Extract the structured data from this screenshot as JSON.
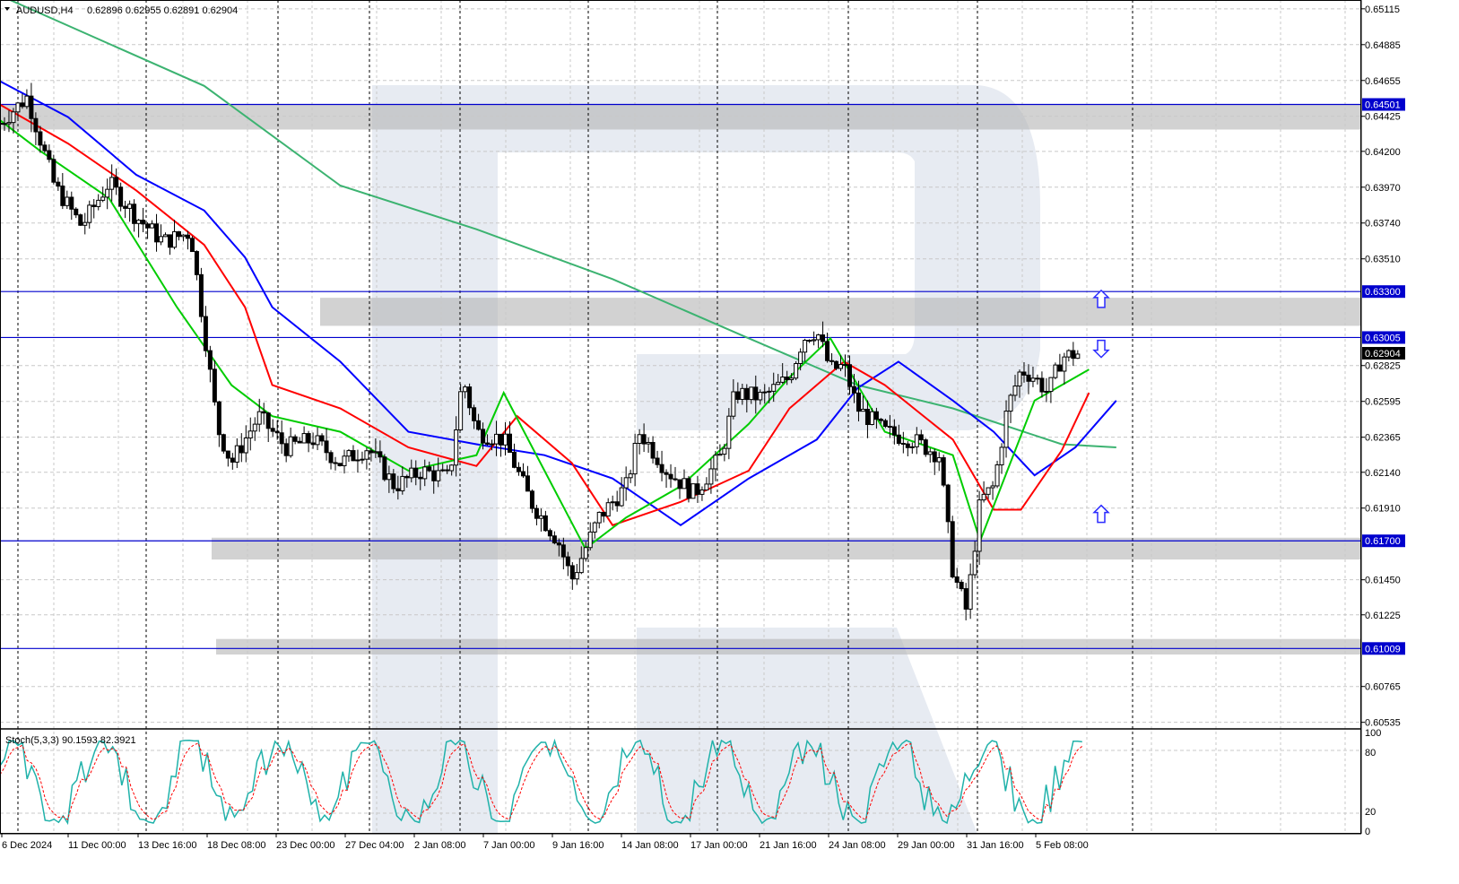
{
  "header": {
    "symbol": "AUDUSD,H4",
    "ohlc": "0.62896 0.62955 0.62891 0.62904",
    "stoch_label": "Stoch(5,3,3) 90.1593 82.3921"
  },
  "chart_data": {
    "type": "candlestick",
    "price_axis": {
      "ticks": [
        0.65115,
        0.64885,
        0.64655,
        0.64425,
        0.642,
        0.6397,
        0.6374,
        0.6351,
        0.62825,
        0.62595,
        0.62365,
        0.6214,
        0.6191,
        0.6145,
        0.61225,
        0.60765,
        0.60535
      ],
      "tick_labels": [
        "0.65115",
        "0.64885",
        "0.64655",
        "0.64425",
        "0.64200",
        "0.63970",
        "0.63740",
        "0.63510",
        "0.62825",
        "0.62595",
        "0.62365",
        "0.62140",
        "0.61910",
        "0.61450",
        "0.61225",
        "0.60765",
        "0.60535"
      ],
      "range": [
        0.6051,
        0.6516
      ]
    },
    "time_axis": {
      "labels": [
        "6 Dec 2024",
        "11 Dec 00:00",
        "13 Dec 16:00",
        "18 Dec 08:00",
        "23 Dec 00:00",
        "27 Dec 04:00",
        "2 Jan 08:00",
        "7 Jan 00:00",
        "9 Jan 16:00",
        "14 Jan 08:00",
        "17 Jan 00:00",
        "21 Jan 16:00",
        "24 Jan 08:00",
        "29 Jan 00:00",
        "31 Jan 16:00",
        "5 Feb 08:00"
      ]
    },
    "levels": [
      {
        "price": 0.64501,
        "label": "0.64501"
      },
      {
        "price": 0.633,
        "label": "0.63300"
      },
      {
        "price": 0.63005,
        "label": "0.63005"
      },
      {
        "price": 0.617,
        "label": "0.61700"
      },
      {
        "price": 0.61009,
        "label": "0.61009"
      }
    ],
    "current_price": {
      "price": 0.62904,
      "label": "0.62904"
    },
    "zones": [
      {
        "from": 0.6434,
        "to": 0.645
      },
      {
        "from": 0.6308,
        "to": 0.6326
      },
      {
        "from": 0.6158,
        "to": 0.6172
      },
      {
        "from": 0.6097,
        "to": 0.6107
      }
    ],
    "moving_averages": [
      {
        "color": "#3cb371",
        "points": [
          [
            0.0,
            0.652
          ],
          [
            0.15,
            0.6462
          ],
          [
            0.25,
            0.6398
          ],
          [
            0.35,
            0.637
          ],
          [
            0.45,
            0.6338
          ],
          [
            0.55,
            0.63
          ],
          [
            0.63,
            0.627
          ],
          [
            0.7,
            0.6255
          ],
          [
            0.78,
            0.6232
          ],
          [
            0.82,
            0.623
          ]
        ]
      },
      {
        "color": "#0000ff",
        "points": [
          [
            0.0,
            0.6465
          ],
          [
            0.05,
            0.6442
          ],
          [
            0.1,
            0.6405
          ],
          [
            0.15,
            0.6382
          ],
          [
            0.18,
            0.6352
          ],
          [
            0.2,
            0.632
          ],
          [
            0.25,
            0.6285
          ],
          [
            0.3,
            0.624
          ],
          [
            0.35,
            0.6232
          ],
          [
            0.4,
            0.6225
          ],
          [
            0.45,
            0.621
          ],
          [
            0.5,
            0.618
          ],
          [
            0.55,
            0.621
          ],
          [
            0.6,
            0.6235
          ],
          [
            0.63,
            0.6268
          ],
          [
            0.66,
            0.6285
          ],
          [
            0.7,
            0.626
          ],
          [
            0.73,
            0.624
          ],
          [
            0.76,
            0.6212
          ],
          [
            0.79,
            0.623
          ],
          [
            0.82,
            0.626
          ]
        ]
      },
      {
        "color": "#ff0000",
        "points": [
          [
            0.0,
            0.645
          ],
          [
            0.05,
            0.6425
          ],
          [
            0.1,
            0.6395
          ],
          [
            0.15,
            0.636
          ],
          [
            0.18,
            0.632
          ],
          [
            0.2,
            0.627
          ],
          [
            0.25,
            0.6255
          ],
          [
            0.3,
            0.623
          ],
          [
            0.35,
            0.6218
          ],
          [
            0.38,
            0.625
          ],
          [
            0.42,
            0.622
          ],
          [
            0.45,
            0.618
          ],
          [
            0.5,
            0.6195
          ],
          [
            0.55,
            0.6215
          ],
          [
            0.58,
            0.6255
          ],
          [
            0.62,
            0.6285
          ],
          [
            0.65,
            0.627
          ],
          [
            0.7,
            0.6235
          ],
          [
            0.73,
            0.619
          ],
          [
            0.75,
            0.619
          ],
          [
            0.78,
            0.6228
          ],
          [
            0.8,
            0.6265
          ]
        ]
      },
      {
        "color": "#00cc00",
        "points": [
          [
            0.0,
            0.644
          ],
          [
            0.03,
            0.642
          ],
          [
            0.08,
            0.639
          ],
          [
            0.13,
            0.632
          ],
          [
            0.17,
            0.627
          ],
          [
            0.2,
            0.625
          ],
          [
            0.25,
            0.624
          ],
          [
            0.3,
            0.6215
          ],
          [
            0.35,
            0.6225
          ],
          [
            0.37,
            0.6265
          ],
          [
            0.4,
            0.6215
          ],
          [
            0.43,
            0.6165
          ],
          [
            0.46,
            0.6185
          ],
          [
            0.5,
            0.6205
          ],
          [
            0.55,
            0.6245
          ],
          [
            0.58,
            0.6275
          ],
          [
            0.61,
            0.63
          ],
          [
            0.65,
            0.624
          ],
          [
            0.7,
            0.6225
          ],
          [
            0.72,
            0.617
          ],
          [
            0.74,
            0.6215
          ],
          [
            0.76,
            0.626
          ],
          [
            0.78,
            0.627
          ],
          [
            0.8,
            0.628
          ]
        ]
      }
    ],
    "candles_path": [
      [
        0.0,
        0.6438
      ],
      [
        0.02,
        0.6455
      ],
      [
        0.04,
        0.6398
      ],
      [
        0.06,
        0.6372
      ],
      [
        0.08,
        0.64
      ],
      [
        0.1,
        0.6378
      ],
      [
        0.12,
        0.6362
      ],
      [
        0.14,
        0.6368
      ],
      [
        0.16,
        0.6242
      ],
      [
        0.17,
        0.622
      ],
      [
        0.19,
        0.625
      ],
      [
        0.21,
        0.623
      ],
      [
        0.23,
        0.6235
      ],
      [
        0.25,
        0.622
      ],
      [
        0.27,
        0.623
      ],
      [
        0.29,
        0.6205
      ],
      [
        0.31,
        0.6215
      ],
      [
        0.33,
        0.621
      ],
      [
        0.34,
        0.6275
      ],
      [
        0.35,
        0.624
      ],
      [
        0.37,
        0.6235
      ],
      [
        0.39,
        0.6195
      ],
      [
        0.41,
        0.617
      ],
      [
        0.42,
        0.6145
      ],
      [
        0.44,
        0.6185
      ],
      [
        0.46,
        0.6205
      ],
      [
        0.47,
        0.624
      ],
      [
        0.49,
        0.6215
      ],
      [
        0.51,
        0.62
      ],
      [
        0.53,
        0.6225
      ],
      [
        0.54,
        0.6265
      ],
      [
        0.56,
        0.6262
      ],
      [
        0.58,
        0.6275
      ],
      [
        0.59,
        0.63
      ],
      [
        0.6,
        0.6305
      ],
      [
        0.61,
        0.628
      ],
      [
        0.62,
        0.6282
      ],
      [
        0.63,
        0.6255
      ],
      [
        0.65,
        0.624
      ],
      [
        0.67,
        0.6235
      ],
      [
        0.69,
        0.6225
      ],
      [
        0.7,
        0.615
      ],
      [
        0.71,
        0.6125
      ],
      [
        0.72,
        0.6195
      ],
      [
        0.73,
        0.6205
      ],
      [
        0.74,
        0.6255
      ],
      [
        0.75,
        0.628
      ],
      [
        0.76,
        0.6275
      ],
      [
        0.77,
        0.6265
      ],
      [
        0.78,
        0.6288
      ],
      [
        0.79,
        0.629
      ]
    ],
    "stochastic": {
      "levels": [
        100,
        80,
        20,
        0
      ],
      "labels": [
        "100",
        "80",
        "20",
        "0"
      ],
      "k_color": "#20b2aa",
      "d_color": "#ff0000"
    },
    "arrows": [
      {
        "dir": "up",
        "price": 0.6325
      },
      {
        "dir": "down",
        "price": 0.62935
      },
      {
        "dir": "up",
        "price": 0.6187
      }
    ]
  },
  "colors": {
    "grid": "#c8c8c8",
    "vgrid": "#000000",
    "level_line": "#0000cd",
    "zone": "#b4b4b4",
    "current_price_bg": "#000000",
    "arrow": "#2b2bff",
    "watermark": "#dfe4ee"
  }
}
